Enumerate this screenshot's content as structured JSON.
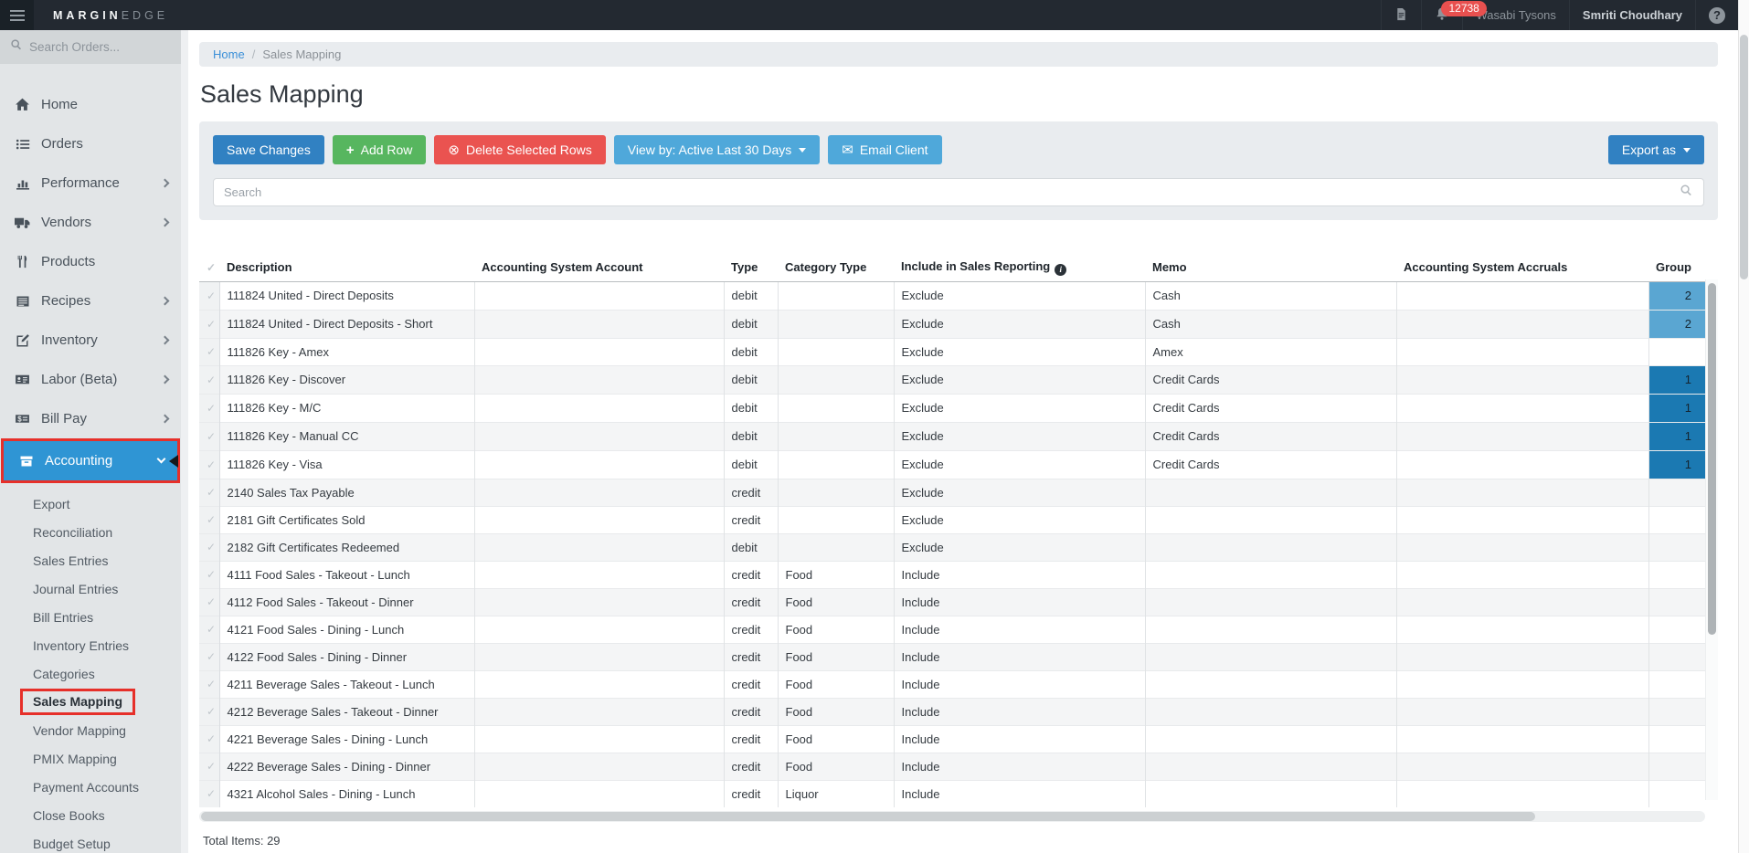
{
  "topbar": {
    "brand_bold": "MARGIN",
    "brand_light": "EDGE",
    "notification_count": "12738",
    "restaurant_name": "Wasabi Tysons",
    "user_name": "Smriti Choudhary"
  },
  "icons": {
    "check_glyph": "✓",
    "question_glyph": "?",
    "plus_glyph": "+",
    "delete_glyph": "⊗",
    "envelope_glyph": "✉",
    "info_glyph": "i",
    "breadcrumb_separator": "/"
  },
  "colors": {
    "accent_blue": "#3181c2",
    "green": "#57b65f",
    "red": "#ea5350",
    "light_blue": "#4fa8da",
    "active_nav_blue": "#2f95d4",
    "annotation_red": "#e6302a",
    "badge_red": "#e8504f",
    "group_light_blue": "#5aa6d2",
    "group_dark_blue": "#1b79b2"
  },
  "sidebar": {
    "search_placeholder": "Search Orders...",
    "items": [
      {
        "label": "Home",
        "icon": "home"
      },
      {
        "label": "Orders",
        "icon": "list"
      },
      {
        "label": "Performance",
        "icon": "chart",
        "expandable": true
      },
      {
        "label": "Vendors",
        "icon": "truck",
        "expandable": true
      },
      {
        "label": "Products",
        "icon": "utensils"
      },
      {
        "label": "Recipes",
        "icon": "book",
        "expandable": true
      },
      {
        "label": "Inventory",
        "icon": "edit",
        "expandable": true
      },
      {
        "label": "Labor (Beta)",
        "icon": "idcard",
        "expandable": true
      },
      {
        "label": "Bill Pay",
        "icon": "moneycheck",
        "expandable": true
      },
      {
        "label": "Accounting",
        "icon": "archive",
        "expanded": true,
        "active": true,
        "annotated": true
      }
    ],
    "accounting_submenu": [
      {
        "label": "Export"
      },
      {
        "label": "Reconciliation"
      },
      {
        "label": "Sales Entries"
      },
      {
        "label": "Journal Entries"
      },
      {
        "label": "Bill Entries"
      },
      {
        "label": "Inventory Entries"
      },
      {
        "label": "Categories"
      },
      {
        "label": "Sales Mapping",
        "active": true,
        "annotated": true
      },
      {
        "label": "Vendor Mapping"
      },
      {
        "label": "PMIX Mapping"
      },
      {
        "label": "Payment Accounts"
      },
      {
        "label": "Close Books"
      },
      {
        "label": "Budget Setup"
      }
    ]
  },
  "breadcrumb": {
    "home": "Home",
    "current": "Sales Mapping"
  },
  "page_title": "Sales Mapping",
  "toolbar": {
    "save_label": "Save Changes",
    "add_row_label": "Add Row",
    "delete_label": "Delete Selected Rows",
    "view_by_label": "View by: Active Last 30 Days",
    "email_label": "Email Client",
    "export_label": "Export as",
    "search_placeholder": "Search"
  },
  "table": {
    "columns": [
      {
        "key": "description",
        "label": "Description"
      },
      {
        "key": "account",
        "label": "Accounting System Account"
      },
      {
        "key": "type",
        "label": "Type"
      },
      {
        "key": "category_type",
        "label": "Category Type"
      },
      {
        "key": "include",
        "label": "Include in Sales Reporting",
        "info": true
      },
      {
        "key": "memo",
        "label": "Memo"
      },
      {
        "key": "accruals",
        "label": "Accounting System Accruals"
      },
      {
        "key": "group",
        "label": "Group"
      }
    ],
    "rows": [
      {
        "description": "111824 United - Direct Deposits",
        "account": "",
        "type": "debit",
        "category_type": "",
        "include": "Exclude",
        "memo": "Cash",
        "accruals": "",
        "group": "2",
        "group_shade": "light"
      },
      {
        "description": "111824 United - Direct Deposits - Short",
        "account": "",
        "type": "debit",
        "category_type": "",
        "include": "Exclude",
        "memo": "Cash",
        "accruals": "",
        "group": "2",
        "group_shade": "light"
      },
      {
        "description": "111826 Key - Amex",
        "account": "",
        "type": "debit",
        "category_type": "",
        "include": "Exclude",
        "memo": "Amex",
        "accruals": "",
        "group": "",
        "group_shade": ""
      },
      {
        "description": "111826 Key - Discover",
        "account": "",
        "type": "debit",
        "category_type": "",
        "include": "Exclude",
        "memo": "Credit Cards",
        "accruals": "",
        "group": "1",
        "group_shade": "dark"
      },
      {
        "description": "111826 Key - M/C",
        "account": "",
        "type": "debit",
        "category_type": "",
        "include": "Exclude",
        "memo": "Credit Cards",
        "accruals": "",
        "group": "1",
        "group_shade": "dark"
      },
      {
        "description": "111826 Key - Manual CC",
        "account": "",
        "type": "debit",
        "category_type": "",
        "include": "Exclude",
        "memo": "Credit Cards",
        "accruals": "",
        "group": "1",
        "group_shade": "dark"
      },
      {
        "description": "111826 Key - Visa",
        "account": "",
        "type": "debit",
        "category_type": "",
        "include": "Exclude",
        "memo": "Credit Cards",
        "accruals": "",
        "group": "1",
        "group_shade": "dark"
      },
      {
        "description": "2140 Sales Tax Payable",
        "account": "",
        "type": "credit",
        "category_type": "",
        "include": "Exclude",
        "memo": "",
        "accruals": "",
        "group": "",
        "group_shade": ""
      },
      {
        "description": "2181 Gift Certificates Sold",
        "account": "",
        "type": "credit",
        "category_type": "",
        "include": "Exclude",
        "memo": "",
        "accruals": "",
        "group": "",
        "group_shade": ""
      },
      {
        "description": "2182 Gift Certificates Redeemed",
        "account": "",
        "type": "debit",
        "category_type": "",
        "include": "Exclude",
        "memo": "",
        "accruals": "",
        "group": "",
        "group_shade": ""
      },
      {
        "description": "4111 Food Sales - Takeout - Lunch",
        "account": "",
        "type": "credit",
        "category_type": "Food",
        "include": "Include",
        "memo": "",
        "accruals": "",
        "group": "",
        "group_shade": ""
      },
      {
        "description": "4112 Food Sales - Takeout - Dinner",
        "account": "",
        "type": "credit",
        "category_type": "Food",
        "include": "Include",
        "memo": "",
        "accruals": "",
        "group": "",
        "group_shade": ""
      },
      {
        "description": "4121 Food Sales - Dining - Lunch",
        "account": "",
        "type": "credit",
        "category_type": "Food",
        "include": "Include",
        "memo": "",
        "accruals": "",
        "group": "",
        "group_shade": ""
      },
      {
        "description": "4122 Food Sales - Dining - Dinner",
        "account": "",
        "type": "credit",
        "category_type": "Food",
        "include": "Include",
        "memo": "",
        "accruals": "",
        "group": "",
        "group_shade": ""
      },
      {
        "description": "4211 Beverage Sales - Takeout - Lunch",
        "account": "",
        "type": "credit",
        "category_type": "Food",
        "include": "Include",
        "memo": "",
        "accruals": "",
        "group": "",
        "group_shade": ""
      },
      {
        "description": "4212 Beverage Sales - Takeout - Dinner",
        "account": "",
        "type": "credit",
        "category_type": "Food",
        "include": "Include",
        "memo": "",
        "accruals": "",
        "group": "",
        "group_shade": ""
      },
      {
        "description": "4221 Beverage Sales - Dining - Lunch",
        "account": "",
        "type": "credit",
        "category_type": "Food",
        "include": "Include",
        "memo": "",
        "accruals": "",
        "group": "",
        "group_shade": ""
      },
      {
        "description": "4222 Beverage Sales - Dining - Dinner",
        "account": "",
        "type": "credit",
        "category_type": "Food",
        "include": "Include",
        "memo": "",
        "accruals": "",
        "group": "",
        "group_shade": ""
      },
      {
        "description": "4321 Alcohol Sales - Dining - Lunch",
        "account": "",
        "type": "credit",
        "category_type": "Liquor",
        "include": "Include",
        "memo": "",
        "accruals": "",
        "group": "",
        "group_shade": ""
      }
    ],
    "total_label": "Total Items: 29"
  }
}
